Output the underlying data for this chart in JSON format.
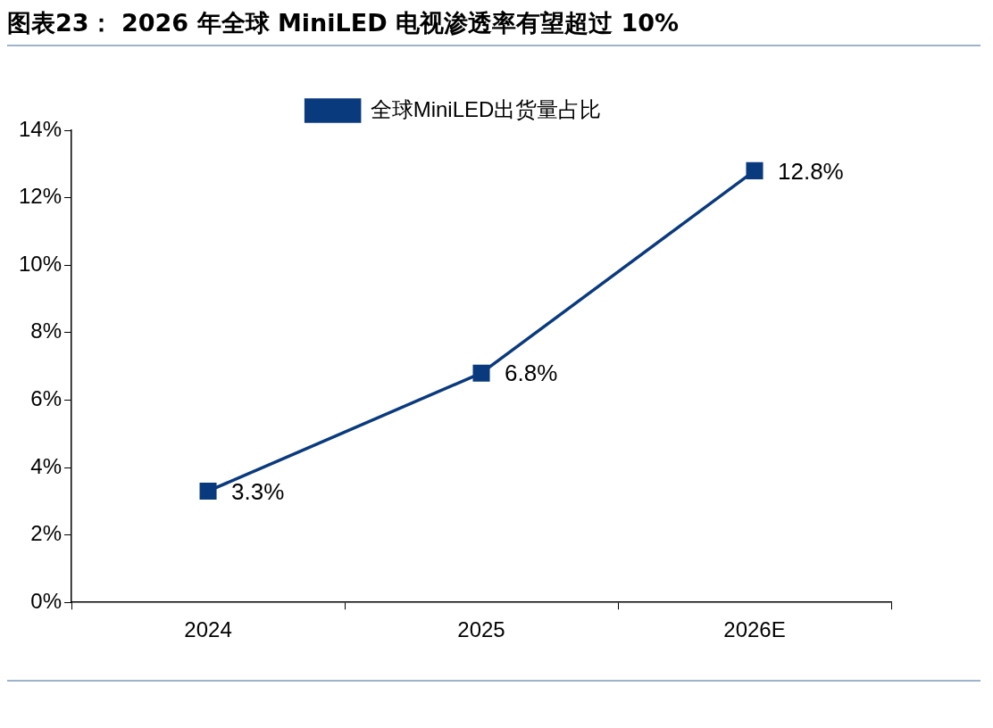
{
  "chart_data": {
    "type": "line",
    "title": "图表23： 2026 年全球 MiniLED 电视渗透率有望超过 10%",
    "categories": [
      "2024",
      "2025",
      "2026E"
    ],
    "series": [
      {
        "name": "全球MiniLED出货量占比",
        "color": "#0a3a7e",
        "values": [
          3.3,
          6.8,
          12.8
        ],
        "value_labels": [
          "3.3%",
          "6.8%",
          "12.8%"
        ]
      }
    ],
    "ylim": [
      0,
      14
    ],
    "yticks": [
      {
        "value": 0,
        "label": "0%"
      },
      {
        "value": 2,
        "label": "2%"
      },
      {
        "value": 4,
        "label": "4%"
      },
      {
        "value": 6,
        "label": "6%"
      },
      {
        "value": 8,
        "label": "8%"
      },
      {
        "value": 10,
        "label": "10%"
      },
      {
        "value": 12,
        "label": "12%"
      },
      {
        "value": 14,
        "label": "14%"
      }
    ],
    "grid": false,
    "legend": "top",
    "marker": "square",
    "line_style": "solid"
  }
}
